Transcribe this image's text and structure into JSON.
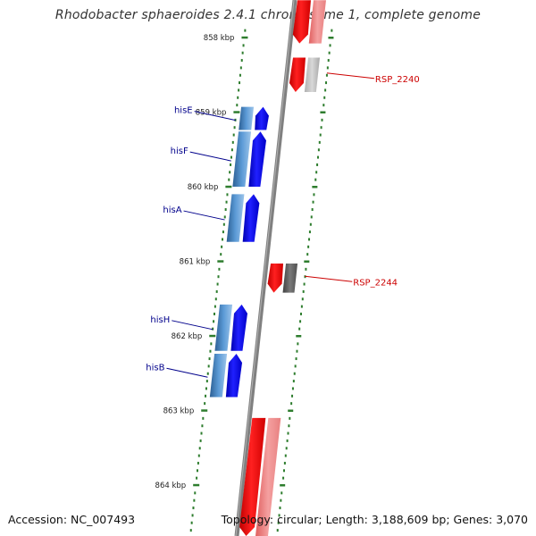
{
  "title": "Rhodobacter sphaeroides 2.4.1 chromosome 1, complete genome",
  "accession": "Accession: NC_007493",
  "summary": "Topology: circular; Length: 3,188,609 bp; Genes: 3,070",
  "colors": {
    "backbone": "#808080",
    "tick": "#2e7d2e",
    "forward_gene": "#0000ee",
    "forward_cds": "#3a7abf",
    "reverse_gene": "#ee0000",
    "reverse_cds": "#f08080",
    "gene_label_forward": "#00008b",
    "gene_label_reverse": "#cc0000"
  },
  "ticks": [
    {
      "label": "858 kbp"
    },
    {
      "label": "859 kbp"
    },
    {
      "label": "860 kbp"
    },
    {
      "label": "861 kbp"
    },
    {
      "label": "862 kbp"
    },
    {
      "label": "863 kbp"
    },
    {
      "label": "864 kbp"
    }
  ],
  "genes": [
    {
      "name": "hisE",
      "strand": "forward",
      "start_kbp": 858.93,
      "end_kbp": 859.24
    },
    {
      "name": "hisF",
      "strand": "forward",
      "start_kbp": 859.26,
      "end_kbp": 860.0
    },
    {
      "name": "hisA",
      "strand": "forward",
      "start_kbp": 860.1,
      "end_kbp": 860.74
    },
    {
      "name": "hisH",
      "strand": "forward",
      "start_kbp": 861.58,
      "end_kbp": 862.2
    },
    {
      "name": "hisB",
      "strand": "forward",
      "start_kbp": 862.24,
      "end_kbp": 862.82
    },
    {
      "name": "RSP_2240",
      "strand": "reverse",
      "start_kbp": 858.27,
      "end_kbp": 858.73
    },
    {
      "name": "RSP_2244",
      "strand": "reverse",
      "start_kbp": 861.03,
      "end_kbp": 861.42
    }
  ],
  "unlabeled_reverse": [
    {
      "start_kbp": 857.5,
      "end_kbp": 858.08
    },
    {
      "start_kbp": 863.1,
      "end_kbp": 864.8
    }
  ]
}
